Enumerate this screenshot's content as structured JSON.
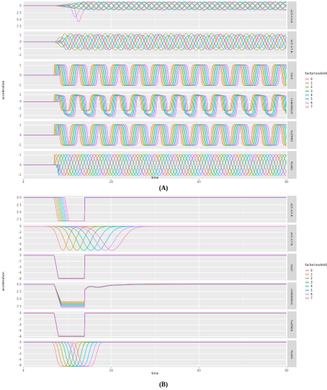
{
  "chart_data": [
    {
      "type": "line",
      "caption": "(A)",
      "xlabel": "time",
      "ylabel": "acceleration",
      "xlim": [
        0,
        60
      ],
      "x_ticks": [
        "0",
        "20",
        "40",
        "60"
      ],
      "legend": {
        "title": "factor(nodeId)",
        "entries": [
          "0",
          "1",
          "2",
          "3",
          "4",
          "5",
          "6",
          "7"
        ],
        "colors": [
          "#F8766D",
          "#CD9600",
          "#7CAE00",
          "#00BE67",
          "#00BFC4",
          "#00A9FF",
          "#C77CFF",
          "#FF61CC"
        ],
        "placement": "right"
      },
      "grid": true,
      "panels": [
        {
          "strip": "ACC-0.9-N",
          "y_ticks": [
            "0",
            "-2.5",
            "-5.0",
            "-7.5"
          ],
          "ylim": [
            -8.5,
            1.6
          ]
        },
        {
          "strip": "ACC-0.7-N",
          "y_ticks": [
            "1",
            "0",
            "-1",
            "-2"
          ],
          "ylim": [
            -2.6,
            1.6
          ]
        },
        {
          "strip": "CACC",
          "y_ticks": [
            "1",
            "0",
            "-1"
          ],
          "ylim": [
            -1.4,
            1.4
          ]
        },
        {
          "strip": "CONSENSUS",
          "y_ticks": [
            "1",
            "0",
            "-1",
            "-2"
          ],
          "ylim": [
            -2.5,
            1.5
          ]
        },
        {
          "strip": "FLATBED",
          "y_ticks": [
            "1",
            "0",
            "-1"
          ],
          "ylim": [
            -1.4,
            1.4
          ]
        },
        {
          "strip": "PLOEG",
          "y_ticks": [
            "1",
            "0",
            "-1"
          ],
          "ylim": [
            -1.4,
            1.4
          ]
        }
      ]
    },
    {
      "type": "line",
      "caption": "(B)",
      "xlabel": "time",
      "ylabel": "acceleration",
      "xlim": [
        0,
        60
      ],
      "x_ticks": [
        "0",
        "20",
        "40",
        "60"
      ],
      "legend": {
        "title": "factor(nodeId)",
        "entries": [
          "0",
          "1",
          "2",
          "3",
          "4",
          "5",
          "6",
          "7"
        ],
        "colors": [
          "#F8766D",
          "#CD9600",
          "#7CAE00",
          "#00BE67",
          "#00BFC4",
          "#00A9FF",
          "#C77CFF",
          "#FF61CC"
        ],
        "placement": "right"
      },
      "grid": true,
      "panels": [
        {
          "strip": "ACC-0.9-N",
          "y_ticks": [
            "0.0",
            "-2.5",
            "-5.0",
            "-7.5"
          ],
          "ylim": [
            -8.5,
            0.6
          ]
        },
        {
          "strip": "ACC-0.7-N",
          "y_ticks": [
            "0",
            "-2",
            "-4",
            "-6",
            "-8"
          ],
          "ylim": [
            -8.6,
            0.6
          ]
        },
        {
          "strip": "CACC",
          "y_ticks": [
            "0",
            "-2",
            "-4",
            "-6",
            "-8"
          ],
          "ylim": [
            -8.6,
            0.6
          ]
        },
        {
          "strip": "CONSENSUS",
          "y_ticks": [
            "0.0",
            "-2.5",
            "-5.0",
            "-7.5"
          ],
          "ylim": [
            -8.5,
            0.6
          ]
        },
        {
          "strip": "FLATBED",
          "y_ticks": [
            "0",
            "-2",
            "-4",
            "-6",
            "-8"
          ],
          "ylim": [
            -8.6,
            0.6
          ]
        },
        {
          "strip": "PLOEG",
          "y_ticks": [
            "0",
            "-2",
            "-4",
            "-6",
            "-8"
          ],
          "ylim": [
            -8.6,
            0.6
          ]
        }
      ]
    }
  ]
}
